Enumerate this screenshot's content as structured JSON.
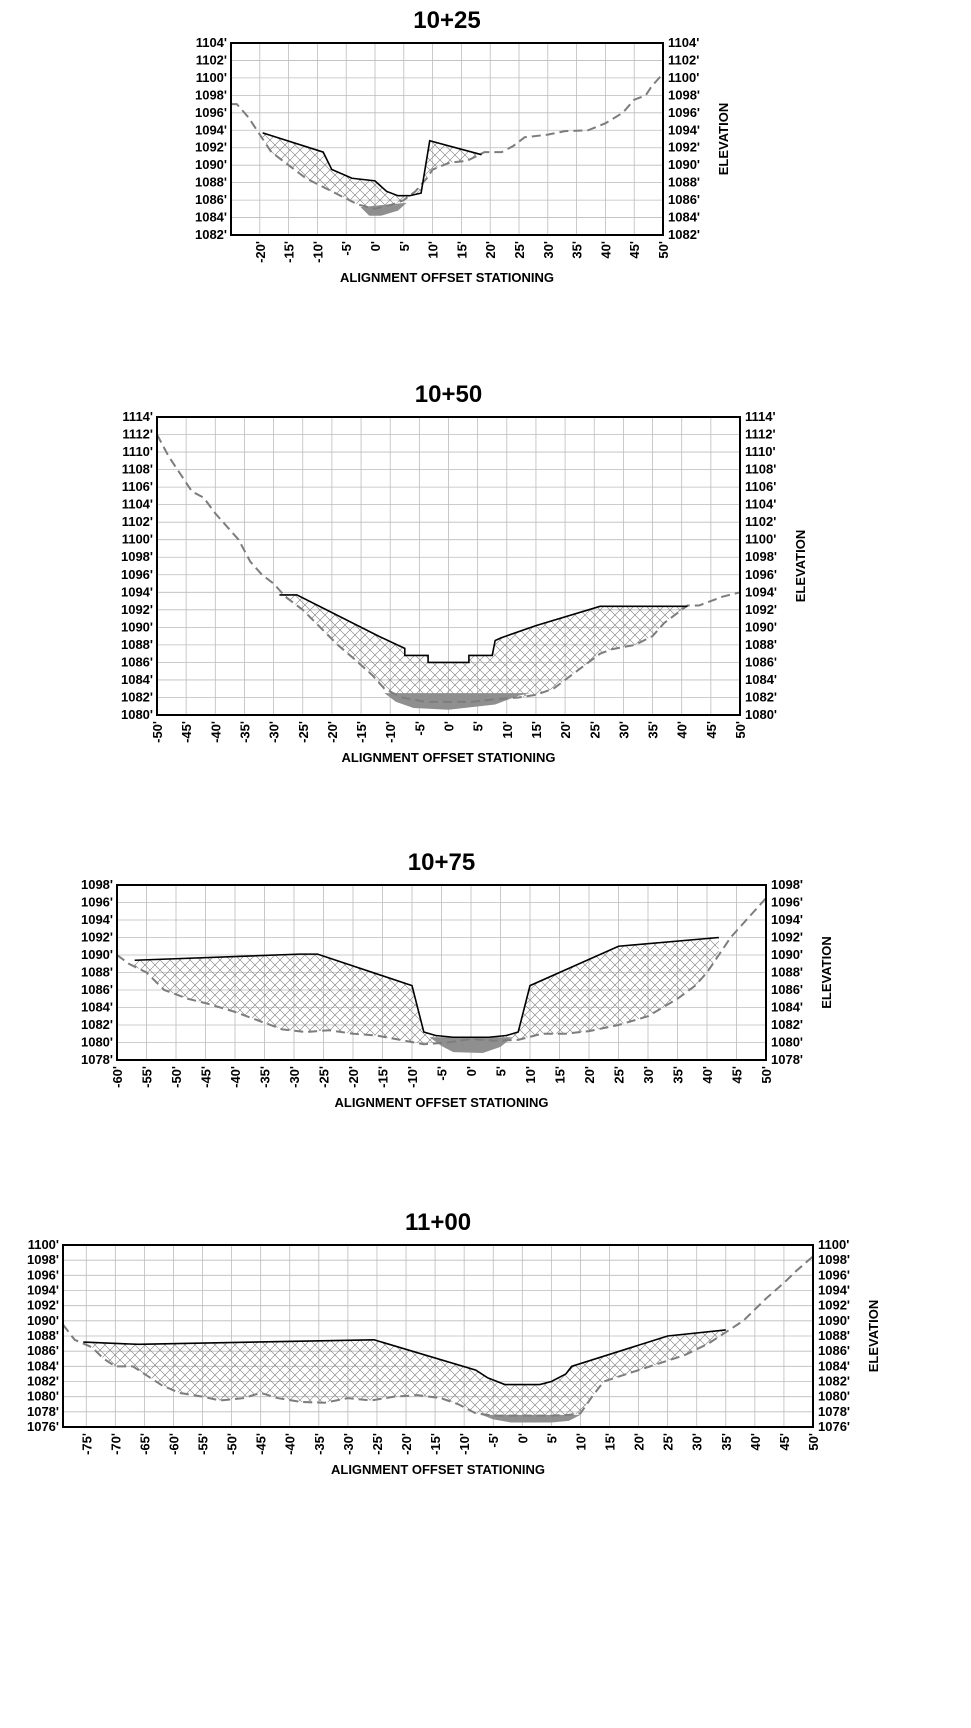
{
  "chart_data": [
    {
      "type": "area",
      "title": "10+25",
      "xlabel": "ALIGNMENT OFFSET STATIONING",
      "ylabel": "ELEVATION",
      "xlim": [
        -25,
        50
      ],
      "ylim": [
        1082,
        1104
      ],
      "xticks": [
        -20,
        -15,
        -10,
        -5,
        0,
        5,
        10,
        15,
        20,
        25,
        30,
        35,
        40,
        45,
        50
      ],
      "yticks": [
        1082,
        1084,
        1086,
        1088,
        1090,
        1092,
        1094,
        1096,
        1098,
        1100,
        1102,
        1104
      ],
      "grid": true,
      "series": [
        {
          "role": "existing-ground",
          "style": "dashed",
          "points": [
            [
              -25,
              1097
            ],
            [
              -24,
              1097
            ],
            [
              -22,
              1095.5
            ],
            [
              -20,
              1093.5
            ],
            [
              -18,
              1091.5
            ],
            [
              -15,
              1090
            ],
            [
              -12,
              1088.5
            ],
            [
              -9,
              1087.5
            ],
            [
              -6,
              1086.5
            ],
            [
              -3,
              1085.5
            ],
            [
              0,
              1085
            ],
            [
              3,
              1085.5
            ],
            [
              5,
              1086
            ],
            [
              7,
              1087
            ],
            [
              9,
              1088.5
            ],
            [
              10,
              1089.5
            ],
            [
              13,
              1090.3
            ],
            [
              16,
              1090.5
            ],
            [
              19,
              1091.5
            ],
            [
              22,
              1091.5
            ],
            [
              24,
              1092.2
            ],
            [
              26,
              1093.2
            ],
            [
              30,
              1093.5
            ],
            [
              33,
              1093.9
            ],
            [
              37,
              1094
            ],
            [
              40,
              1094.8
            ],
            [
              43,
              1096
            ],
            [
              45,
              1097.5
            ],
            [
              47,
              1098
            ],
            [
              48,
              1099
            ],
            [
              50,
              1100.5
            ]
          ]
        },
        {
          "role": "proposed-grade",
          "style": "solid",
          "points": [
            [
              -19.5,
              1093.7
            ],
            [
              -9,
              1091.5
            ],
            [
              -7.5,
              1089.5
            ],
            [
              -4,
              1088.5
            ],
            [
              0,
              1088.2
            ],
            [
              2,
              1087
            ],
            [
              4,
              1086.5
            ],
            [
              6,
              1086.5
            ],
            [
              8,
              1086.8
            ],
            [
              9.5,
              1092.8
            ],
            [
              18.5,
              1091.2
            ]
          ]
        },
        {
          "role": "water",
          "style": "filled",
          "points": [
            [
              -2.5,
              1085.2
            ],
            [
              5.5,
              1085.7
            ],
            [
              4,
              1084.8
            ],
            [
              1,
              1084.2
            ],
            [
              -1,
              1084.2
            ],
            [
              -2.5,
              1085.2
            ]
          ]
        }
      ]
    },
    {
      "type": "area",
      "title": "10+50",
      "xlabel": "ALIGNMENT OFFSET STATIONING",
      "ylabel": "ELEVATION",
      "xlim": [
        -50,
        50
      ],
      "ylim": [
        1080,
        1114
      ],
      "xticks": [
        -50,
        -45,
        -40,
        -35,
        -30,
        -25,
        -20,
        -15,
        -10,
        -5,
        0,
        5,
        10,
        15,
        20,
        25,
        30,
        35,
        40,
        45,
        50
      ],
      "yticks": [
        1080,
        1082,
        1084,
        1086,
        1088,
        1090,
        1092,
        1094,
        1096,
        1098,
        1100,
        1102,
        1104,
        1106,
        1108,
        1110,
        1112,
        1114
      ],
      "grid": true,
      "series": [
        {
          "role": "existing-ground",
          "style": "dashed",
          "points": [
            [
              -50,
              1112
            ],
            [
              -48,
              1109.5
            ],
            [
              -46,
              1107.5
            ],
            [
              -44,
              1105.5
            ],
            [
              -42,
              1104.8
            ],
            [
              -40,
              1103
            ],
            [
              -38,
              1101.5
            ],
            [
              -36,
              1100
            ],
            [
              -34,
              1097.5
            ],
            [
              -32,
              1096
            ],
            [
              -30,
              1095
            ],
            [
              -28,
              1093.5
            ],
            [
              -25,
              1092
            ],
            [
              -22,
              1090
            ],
            [
              -19,
              1088
            ],
            [
              -16,
              1086.3
            ],
            [
              -13,
              1084.5
            ],
            [
              -11,
              1083
            ],
            [
              -8,
              1082
            ],
            [
              -4,
              1081.5
            ],
            [
              0,
              1081.5
            ],
            [
              4,
              1081.5
            ],
            [
              8,
              1081.8
            ],
            [
              12,
              1082
            ],
            [
              15,
              1082.3
            ],
            [
              18,
              1083
            ],
            [
              21,
              1084.5
            ],
            [
              24,
              1086
            ],
            [
              26,
              1087
            ],
            [
              28,
              1087.5
            ],
            [
              32,
              1088
            ],
            [
              35,
              1089
            ],
            [
              37,
              1090.5
            ],
            [
              39,
              1091.5
            ],
            [
              41,
              1092.5
            ],
            [
              43,
              1092.5
            ],
            [
              45,
              1093
            ],
            [
              47,
              1093.5
            ],
            [
              50,
              1094
            ]
          ]
        },
        {
          "role": "proposed-grade",
          "style": "solid",
          "points": [
            [
              -29,
              1093.7
            ],
            [
              -26,
              1093.7
            ],
            [
              -12,
              1089
            ],
            [
              -7.5,
              1087.6
            ],
            [
              -7.5,
              1086.8
            ],
            [
              -3.5,
              1086.8
            ],
            [
              -3.5,
              1086
            ],
            [
              3.5,
              1086
            ],
            [
              3.5,
              1086.8
            ],
            [
              7.5,
              1086.8
            ],
            [
              8,
              1088.5
            ],
            [
              9,
              1088.8
            ],
            [
              15,
              1090.2
            ],
            [
              26,
              1092.4
            ],
            [
              41,
              1092.4
            ]
          ]
        },
        {
          "role": "water",
          "style": "filled",
          "points": [
            [
              -11,
              1082.5
            ],
            [
              14,
              1082.5
            ],
            [
              12,
              1082.2
            ],
            [
              8,
              1081.2
            ],
            [
              0,
              1080.6
            ],
            [
              -6,
              1080.8
            ],
            [
              -9,
              1081.5
            ],
            [
              -11,
              1082.5
            ]
          ]
        }
      ]
    },
    {
      "type": "area",
      "title": "10+75",
      "xlabel": "ALIGNMENT OFFSET STATIONING",
      "ylabel": "ELEVATION",
      "xlim": [
        -60,
        50
      ],
      "ylim": [
        1078,
        1098
      ],
      "xticks": [
        -60,
        -55,
        -50,
        -45,
        -40,
        -35,
        -30,
        -25,
        -20,
        -15,
        -10,
        -5,
        0,
        5,
        10,
        15,
        20,
        25,
        30,
        35,
        40,
        45,
        50
      ],
      "yticks": [
        1078,
        1080,
        1082,
        1084,
        1086,
        1088,
        1090,
        1092,
        1094,
        1096,
        1098
      ],
      "grid": true,
      "series": [
        {
          "role": "existing-ground",
          "style": "dashed",
          "points": [
            [
              -60,
              1090
            ],
            [
              -58,
              1089
            ],
            [
              -55,
              1088
            ],
            [
              -52,
              1086
            ],
            [
              -48,
              1085
            ],
            [
              -45,
              1084.5
            ],
            [
              -40,
              1083.5
            ],
            [
              -36,
              1082.5
            ],
            [
              -32,
              1081.5
            ],
            [
              -28,
              1081.2
            ],
            [
              -24,
              1081.4
            ],
            [
              -20,
              1081
            ],
            [
              -16,
              1080.8
            ],
            [
              -12,
              1080.3
            ],
            [
              -8,
              1079.8
            ],
            [
              -4,
              1080
            ],
            [
              0,
              1080.4
            ],
            [
              4,
              1080.2
            ],
            [
              8,
              1080.3
            ],
            [
              12,
              1081
            ],
            [
              16,
              1081
            ],
            [
              20,
              1081.3
            ],
            [
              25,
              1082
            ],
            [
              30,
              1083
            ],
            [
              35,
              1085
            ],
            [
              38,
              1086.5
            ],
            [
              40,
              1088
            ],
            [
              42,
              1090
            ],
            [
              44,
              1092
            ],
            [
              46,
              1093.5
            ],
            [
              48,
              1095
            ],
            [
              50,
              1096.5
            ]
          ]
        },
        {
          "role": "proposed-grade",
          "style": "solid",
          "points": [
            [
              -57,
              1089.4
            ],
            [
              -29,
              1090.1
            ],
            [
              -26,
              1090.1
            ],
            [
              -10,
              1086.5
            ],
            [
              -8,
              1081.2
            ],
            [
              -6,
              1080.8
            ],
            [
              -3,
              1080.6
            ],
            [
              3,
              1080.6
            ],
            [
              6,
              1080.8
            ],
            [
              8,
              1081.2
            ],
            [
              10,
              1086.5
            ],
            [
              25,
              1091
            ],
            [
              42,
              1092
            ]
          ]
        },
        {
          "role": "water",
          "style": "filled",
          "points": [
            [
              -7,
              1080.6
            ],
            [
              7,
              1080.6
            ],
            [
              5,
              1079.5
            ],
            [
              2,
              1078.8
            ],
            [
              -3,
              1078.9
            ],
            [
              -5,
              1079.6
            ],
            [
              -7,
              1080.6
            ]
          ]
        }
      ]
    },
    {
      "type": "area",
      "title": "11+00",
      "xlabel": "ALIGNMENT OFFSET STATIONING",
      "ylabel": "ELEVATION",
      "xlim": [
        -79,
        50
      ],
      "ylim": [
        1076,
        1100
      ],
      "xticks": [
        -75,
        -70,
        -65,
        -60,
        -55,
        -50,
        -45,
        -40,
        -35,
        -30,
        -25,
        -20,
        -15,
        -10,
        -5,
        0,
        5,
        10,
        15,
        20,
        25,
        30,
        35,
        40,
        45,
        50
      ],
      "yticks": [
        1076,
        1078,
        1080,
        1082,
        1084,
        1086,
        1088,
        1090,
        1092,
        1094,
        1096,
        1098,
        1100
      ],
      "grid": true,
      "series": [
        {
          "role": "existing-ground",
          "style": "dashed",
          "points": [
            [
              -79,
              1089.5
            ],
            [
              -77,
              1087.5
            ],
            [
              -74,
              1086.5
            ],
            [
              -72,
              1085
            ],
            [
              -70,
              1084
            ],
            [
              -67,
              1084
            ],
            [
              -65,
              1083
            ],
            [
              -62,
              1081.5
            ],
            [
              -59,
              1080.5
            ],
            [
              -55,
              1080
            ],
            [
              -52,
              1079.5
            ],
            [
              -48,
              1079.8
            ],
            [
              -45,
              1080.5
            ],
            [
              -42,
              1079.8
            ],
            [
              -38,
              1079.3
            ],
            [
              -34,
              1079.2
            ],
            [
              -30,
              1079.8
            ],
            [
              -26,
              1079.5
            ],
            [
              -22,
              1080
            ],
            [
              -18,
              1080.2
            ],
            [
              -14,
              1079.8
            ],
            [
              -11,
              1079
            ],
            [
              -8,
              1077.8
            ],
            [
              -5,
              1077.5
            ],
            [
              0,
              1077.5
            ],
            [
              5,
              1077.5
            ],
            [
              8,
              1077.6
            ],
            [
              10,
              1077.8
            ],
            [
              12,
              1080
            ],
            [
              14,
              1082
            ],
            [
              16,
              1082.5
            ],
            [
              20,
              1083.5
            ],
            [
              24,
              1084.5
            ],
            [
              28,
              1085.5
            ],
            [
              32,
              1087
            ],
            [
              35,
              1088.5
            ],
            [
              38,
              1090
            ],
            [
              40,
              1091.5
            ],
            [
              42,
              1093
            ],
            [
              45,
              1095
            ],
            [
              47,
              1096.5
            ],
            [
              50,
              1098.5
            ]
          ]
        },
        {
          "role": "proposed-grade",
          "style": "solid",
          "points": [
            [
              -75.5,
              1087.2
            ],
            [
              -66,
              1086.9
            ],
            [
              -25.5,
              1087.5
            ],
            [
              -8,
              1083.5
            ],
            [
              -6,
              1082.5
            ],
            [
              -3,
              1081.6
            ],
            [
              3,
              1081.6
            ],
            [
              5,
              1082
            ],
            [
              7.5,
              1083
            ],
            [
              8.5,
              1084
            ],
            [
              25,
              1088
            ],
            [
              35,
              1088.8
            ]
          ]
        },
        {
          "role": "water",
          "style": "filled",
          "points": [
            [
              -7,
              1077.6
            ],
            [
              10,
              1077.6
            ],
            [
              8,
              1076.8
            ],
            [
              5,
              1076.6
            ],
            [
              -2,
              1076.6
            ],
            [
              -5,
              1077
            ],
            [
              -7,
              1077.6
            ]
          ]
        }
      ]
    }
  ]
}
